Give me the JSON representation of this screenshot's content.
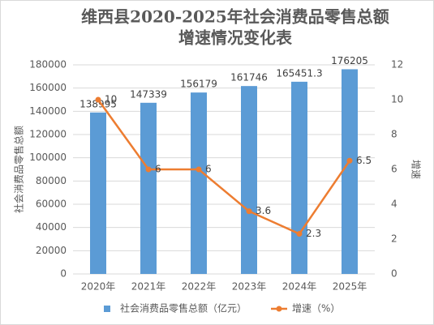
{
  "chart_data": {
    "type": "bar-line",
    "title": [
      "维西县2020-2025年社会消费品零售总额",
      "增速情况变化表"
    ],
    "categories": [
      "2020年",
      "2021年",
      "2022年",
      "2023年",
      "2024年",
      "2025年"
    ],
    "series": [
      {
        "name": "社会消费品零售总额（亿元）",
        "type": "bar",
        "color": "#5b9bd5",
        "values": [
          138995,
          147339,
          156179,
          161746,
          165451.3,
          176205
        ]
      },
      {
        "name": "增速（%）",
        "type": "line",
        "axis": "y2",
        "color": "#ed7d31",
        "values": [
          10,
          6,
          6,
          3.6,
          2.3,
          6.5
        ]
      }
    ],
    "y_label": "社会消费品零售总额",
    "y2_label": "增速",
    "ylim": [
      0,
      180000
    ],
    "yticks": [
      0,
      20000,
      40000,
      60000,
      80000,
      100000,
      120000,
      140000,
      160000,
      180000
    ],
    "y2lim": [
      0,
      12
    ],
    "y2ticks": [
      0,
      2,
      4,
      6,
      8,
      10,
      12
    ],
    "grid": true,
    "legend": "bottom"
  }
}
